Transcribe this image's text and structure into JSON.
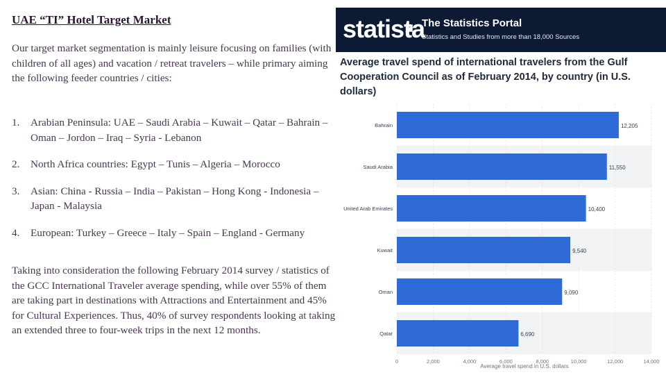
{
  "slide": {
    "title": "UAE “TI” Hotel Target Market",
    "intro": "Our target market segmentation is mainly leisure focusing on families (with children of all ages) and vacation / retreat travelers – while primary aiming the following feeder countries / cities:",
    "feeders": [
      {
        "num": "1.",
        "text": "Arabian Peninsula: UAE – Saudi Arabia – Kuwait – Qatar – Bahrain – Oman – Jordon – Iraq – Syria - Lebanon"
      },
      {
        "num": "2.",
        "text": "North Africa countries: Egypt – Tunis – Algeria – Morocco"
      },
      {
        "num": "3.",
        "text": "Asian: China - Russia – India – Pakistan – Hong Kong - Indonesia – Japan - Malaysia"
      },
      {
        "num": "4.",
        "text": "European: Turkey – Greece – Italy – Spain – England - Germany"
      }
    ],
    "survey": "Taking into consideration the following February 2014 survey / statistics of the GCC International Traveler average spending, while over 55% of them are taking part in destinations with Attractions and Entertainment and 45% for Cultural Experiences. Thus, 40% of survey respondents looking at taking an extended three to four-week trips in the next 12 months."
  },
  "statista": {
    "logo": "statista",
    "portal_name": "The Statistics Portal",
    "tagline": "Statistics and Studies from more than 18,000 Sources"
  },
  "chart_data": {
    "type": "bar",
    "orientation": "horizontal",
    "title": "Average travel spend of international travelers from the Gulf Cooperation Council as of February 2014, by country (in U.S. dollars)",
    "xlabel": "Average travel spend in U.S. dollars",
    "categories": [
      "Bahrain",
      "Saudi Arabia",
      "United Arab Emirates",
      "Kuwait",
      "Oman",
      "Qatar"
    ],
    "values": [
      12205,
      11550,
      10400,
      9540,
      9090,
      6690
    ],
    "value_labels": [
      "12,205",
      "11,550",
      "10,400",
      "9,540",
      "9,090",
      "6,690"
    ],
    "xlim": [
      0,
      14000
    ],
    "ticks": [
      0,
      2000,
      4000,
      6000,
      8000,
      10000,
      12000,
      14000
    ],
    "tick_labels": [
      "0",
      "2,000",
      "4,000",
      "6,000",
      "8,000",
      "10,000",
      "12,000",
      "14,000"
    ],
    "bar_color": "#2f6bd6",
    "band_color": "#f2f3f5",
    "grid": true
  }
}
